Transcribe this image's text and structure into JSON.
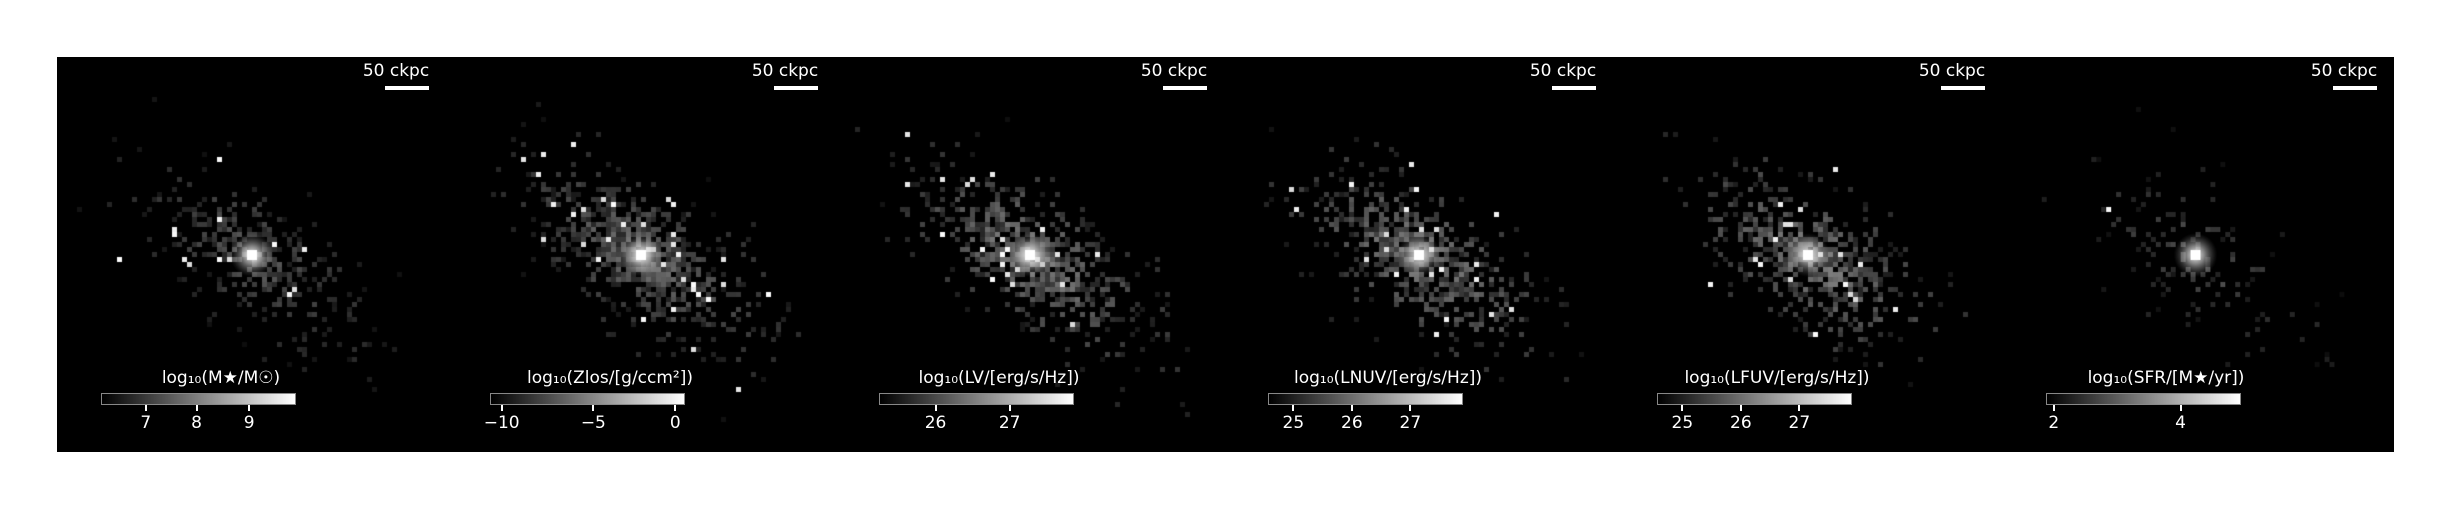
{
  "panels": [
    {
      "scale_label": "50 ckpc",
      "colorbar_label": "log₁₀(M★/M☉)",
      "ticks": [
        "7",
        "8",
        "9"
      ],
      "tick_fracs": [
        0.23,
        0.49,
        0.76
      ],
      "brightness": 0.55,
      "density": 0.55,
      "core": 1.0
    },
    {
      "scale_label": "50 ckpc",
      "colorbar_label": "log₁₀(Zlos/[g/ccm²])",
      "ticks": [
        "−10",
        "−5",
        "0"
      ],
      "tick_fracs": [
        0.06,
        0.53,
        0.95
      ],
      "brightness": 0.7,
      "density": 1.0,
      "core": 1.0
    },
    {
      "scale_label": "50 ckpc",
      "colorbar_label": "log₁₀(LV/[erg/s/Hz])",
      "ticks": [
        "26",
        "27"
      ],
      "tick_fracs": [
        0.29,
        0.67
      ],
      "brightness": 0.8,
      "density": 0.9,
      "core": 1.0
    },
    {
      "scale_label": "50 ckpc",
      "colorbar_label": "log₁₀(LNUV/[erg/s/Hz])",
      "ticks": [
        "25",
        "26",
        "27"
      ],
      "tick_fracs": [
        0.13,
        0.43,
        0.73
      ],
      "brightness": 0.8,
      "density": 0.9,
      "core": 0.9
    },
    {
      "scale_label": "50 ckpc",
      "colorbar_label": "log₁₀(LFUV/[erg/s/Hz])",
      "ticks": [
        "25",
        "26",
        "27"
      ],
      "tick_fracs": [
        0.13,
        0.43,
        0.73
      ],
      "brightness": 0.8,
      "density": 0.9,
      "core": 0.9
    },
    {
      "scale_label": "50 ckpc",
      "colorbar_label": "log₁₀(SFR/[M★/yr])",
      "ticks": [
        "2",
        "4"
      ],
      "tick_fracs": [
        0.04,
        0.69
      ],
      "brightness": 0.5,
      "density": 0.25,
      "core": 1.0
    }
  ]
}
